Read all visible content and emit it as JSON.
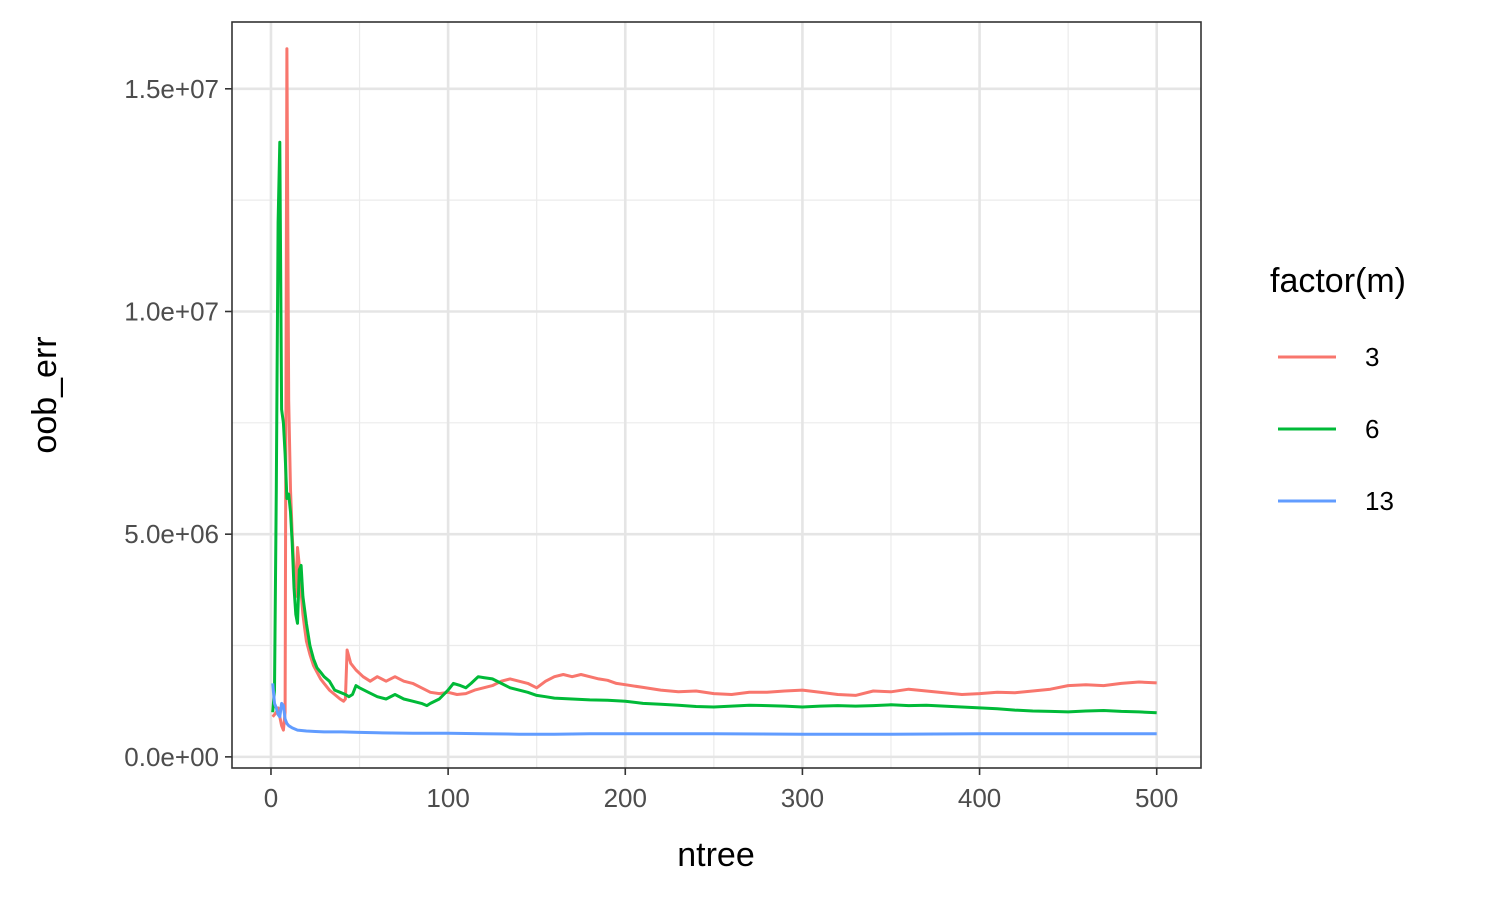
{
  "chart_data": {
    "type": "line",
    "title": "",
    "xlabel": "ntree",
    "ylabel": "oob_err",
    "xlim": [
      -22,
      525
    ],
    "ylim": [
      -250000,
      16500000
    ],
    "x_ticks": [
      0,
      100,
      200,
      300,
      400,
      500
    ],
    "x_tick_labels": [
      "0",
      "100",
      "200",
      "300",
      "400",
      "500"
    ],
    "y_ticks": [
      0,
      5000000,
      10000000,
      15000000
    ],
    "y_tick_labels": [
      "0.0e+00",
      "5.0e+06",
      "1.0e+07",
      "1.5e+07"
    ],
    "grid": true,
    "legend": {
      "title": "factor(m)",
      "placement": "right"
    },
    "series": [
      {
        "name": "3",
        "color": "#F8766D",
        "points": [
          [
            1,
            900000
          ],
          [
            2,
            950000
          ],
          [
            3,
            1000000
          ],
          [
            4,
            1100000
          ],
          [
            5,
            900000
          ],
          [
            6,
            700000
          ],
          [
            7,
            600000
          ],
          [
            8,
            1000000
          ],
          [
            9,
            15900000
          ],
          [
            10,
            8000000
          ],
          [
            11,
            6000000
          ],
          [
            12,
            5000000
          ],
          [
            13,
            4200000
          ],
          [
            14,
            3600000
          ],
          [
            15,
            4700000
          ],
          [
            16,
            4300000
          ],
          [
            17,
            3700000
          ],
          [
            18,
            3200000
          ],
          [
            19,
            2900000
          ],
          [
            20,
            2600000
          ],
          [
            22,
            2300000
          ],
          [
            24,
            2050000
          ],
          [
            26,
            1900000
          ],
          [
            28,
            1750000
          ],
          [
            30,
            1650000
          ],
          [
            33,
            1500000
          ],
          [
            36,
            1400000
          ],
          [
            39,
            1300000
          ],
          [
            41,
            1250000
          ],
          [
            42,
            1300000
          ],
          [
            43,
            2400000
          ],
          [
            45,
            2100000
          ],
          [
            48,
            1950000
          ],
          [
            52,
            1800000
          ],
          [
            56,
            1700000
          ],
          [
            60,
            1800000
          ],
          [
            65,
            1700000
          ],
          [
            70,
            1800000
          ],
          [
            75,
            1700000
          ],
          [
            80,
            1650000
          ],
          [
            85,
            1550000
          ],
          [
            90,
            1450000
          ],
          [
            95,
            1420000
          ],
          [
            100,
            1450000
          ],
          [
            105,
            1400000
          ],
          [
            110,
            1420000
          ],
          [
            115,
            1500000
          ],
          [
            120,
            1550000
          ],
          [
            125,
            1600000
          ],
          [
            130,
            1700000
          ],
          [
            135,
            1750000
          ],
          [
            140,
            1700000
          ],
          [
            145,
            1650000
          ],
          [
            150,
            1550000
          ],
          [
            155,
            1700000
          ],
          [
            160,
            1800000
          ],
          [
            165,
            1850000
          ],
          [
            170,
            1800000
          ],
          [
            175,
            1850000
          ],
          [
            180,
            1800000
          ],
          [
            185,
            1750000
          ],
          [
            190,
            1720000
          ],
          [
            195,
            1650000
          ],
          [
            200,
            1620000
          ],
          [
            210,
            1560000
          ],
          [
            220,
            1500000
          ],
          [
            230,
            1460000
          ],
          [
            240,
            1480000
          ],
          [
            250,
            1420000
          ],
          [
            260,
            1400000
          ],
          [
            270,
            1450000
          ],
          [
            280,
            1450000
          ],
          [
            290,
            1480000
          ],
          [
            300,
            1500000
          ],
          [
            310,
            1450000
          ],
          [
            320,
            1400000
          ],
          [
            330,
            1380000
          ],
          [
            340,
            1480000
          ],
          [
            350,
            1460000
          ],
          [
            360,
            1520000
          ],
          [
            370,
            1480000
          ],
          [
            380,
            1440000
          ],
          [
            390,
            1400000
          ],
          [
            400,
            1420000
          ],
          [
            410,
            1450000
          ],
          [
            420,
            1440000
          ],
          [
            430,
            1480000
          ],
          [
            440,
            1520000
          ],
          [
            450,
            1600000
          ],
          [
            460,
            1620000
          ],
          [
            470,
            1600000
          ],
          [
            480,
            1650000
          ],
          [
            490,
            1680000
          ],
          [
            500,
            1660000
          ]
        ]
      },
      {
        "name": "6",
        "color": "#00BA38",
        "points": [
          [
            1,
            1000000
          ],
          [
            2,
            1500000
          ],
          [
            3,
            6000000
          ],
          [
            4,
            12000000
          ],
          [
            5,
            13800000
          ],
          [
            6,
            7800000
          ],
          [
            7,
            7500000
          ],
          [
            8,
            6800000
          ],
          [
            9,
            5800000
          ],
          [
            10,
            5900000
          ],
          [
            11,
            5500000
          ],
          [
            12,
            4800000
          ],
          [
            13,
            3800000
          ],
          [
            14,
            3200000
          ],
          [
            15,
            3000000
          ],
          [
            16,
            4200000
          ],
          [
            17,
            4300000
          ],
          [
            18,
            3600000
          ],
          [
            20,
            3000000
          ],
          [
            22,
            2500000
          ],
          [
            24,
            2200000
          ],
          [
            26,
            2000000
          ],
          [
            28,
            1900000
          ],
          [
            30,
            1800000
          ],
          [
            33,
            1700000
          ],
          [
            36,
            1500000
          ],
          [
            39,
            1450000
          ],
          [
            42,
            1400000
          ],
          [
            44,
            1350000
          ],
          [
            46,
            1400000
          ],
          [
            48,
            1600000
          ],
          [
            50,
            1550000
          ],
          [
            55,
            1450000
          ],
          [
            60,
            1350000
          ],
          [
            65,
            1300000
          ],
          [
            70,
            1400000
          ],
          [
            75,
            1300000
          ],
          [
            80,
            1250000
          ],
          [
            85,
            1200000
          ],
          [
            88,
            1150000
          ],
          [
            90,
            1200000
          ],
          [
            95,
            1300000
          ],
          [
            100,
            1500000
          ],
          [
            103,
            1650000
          ],
          [
            107,
            1600000
          ],
          [
            110,
            1550000
          ],
          [
            113,
            1650000
          ],
          [
            117,
            1800000
          ],
          [
            120,
            1780000
          ],
          [
            125,
            1750000
          ],
          [
            130,
            1650000
          ],
          [
            135,
            1550000
          ],
          [
            140,
            1500000
          ],
          [
            145,
            1450000
          ],
          [
            150,
            1380000
          ],
          [
            155,
            1350000
          ],
          [
            160,
            1320000
          ],
          [
            170,
            1300000
          ],
          [
            180,
            1280000
          ],
          [
            190,
            1270000
          ],
          [
            200,
            1250000
          ],
          [
            210,
            1200000
          ],
          [
            220,
            1180000
          ],
          [
            230,
            1160000
          ],
          [
            240,
            1130000
          ],
          [
            250,
            1120000
          ],
          [
            260,
            1140000
          ],
          [
            270,
            1160000
          ],
          [
            280,
            1150000
          ],
          [
            290,
            1140000
          ],
          [
            300,
            1120000
          ],
          [
            310,
            1140000
          ],
          [
            320,
            1150000
          ],
          [
            330,
            1140000
          ],
          [
            340,
            1150000
          ],
          [
            350,
            1170000
          ],
          [
            360,
            1150000
          ],
          [
            370,
            1160000
          ],
          [
            380,
            1140000
          ],
          [
            390,
            1120000
          ],
          [
            400,
            1100000
          ],
          [
            410,
            1080000
          ],
          [
            420,
            1050000
          ],
          [
            430,
            1030000
          ],
          [
            440,
            1020000
          ],
          [
            450,
            1010000
          ],
          [
            460,
            1030000
          ],
          [
            470,
            1040000
          ],
          [
            480,
            1020000
          ],
          [
            490,
            1010000
          ],
          [
            500,
            990000
          ]
        ]
      },
      {
        "name": "13",
        "color": "#619CFF",
        "points": [
          [
            1,
            1650000
          ],
          [
            2,
            1200000
          ],
          [
            3,
            1100000
          ],
          [
            4,
            950000
          ],
          [
            5,
            900000
          ],
          [
            6,
            1200000
          ],
          [
            7,
            1150000
          ],
          [
            8,
            850000
          ],
          [
            9,
            750000
          ],
          [
            10,
            700000
          ],
          [
            12,
            650000
          ],
          [
            15,
            600000
          ],
          [
            20,
            580000
          ],
          [
            25,
            570000
          ],
          [
            30,
            560000
          ],
          [
            40,
            560000
          ],
          [
            50,
            550000
          ],
          [
            60,
            540000
          ],
          [
            80,
            530000
          ],
          [
            100,
            530000
          ],
          [
            120,
            520000
          ],
          [
            140,
            510000
          ],
          [
            160,
            510000
          ],
          [
            180,
            520000
          ],
          [
            200,
            520000
          ],
          [
            250,
            520000
          ],
          [
            300,
            510000
          ],
          [
            350,
            510000
          ],
          [
            400,
            520000
          ],
          [
            450,
            520000
          ],
          [
            500,
            520000
          ]
        ]
      }
    ]
  }
}
